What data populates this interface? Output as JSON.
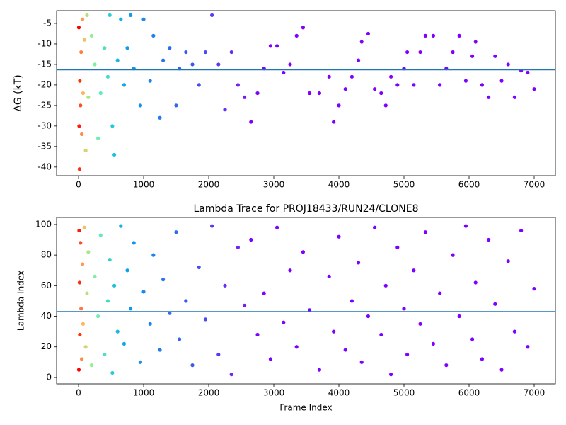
{
  "chart_data": [
    {
      "type": "scatter",
      "ylabel": "ΔG (kT)",
      "xlim": [
        -337,
        7326
      ],
      "ylim": [
        -42.1,
        -1.9
      ],
      "xticks": [
        0,
        1000,
        2000,
        3000,
        4000,
        5000,
        6000,
        7000
      ],
      "yticks": [
        -40,
        -35,
        -30,
        -25,
        -20,
        -15,
        -10,
        -5
      ],
      "hline": -16.3,
      "hline_color": "#1f77b4",
      "x": [
        5,
        10,
        15,
        20,
        30,
        40,
        50,
        60,
        70,
        90,
        110,
        130,
        150,
        200,
        250,
        300,
        340,
        400,
        450,
        480,
        520,
        550,
        600,
        650,
        700,
        750,
        800,
        850,
        950,
        1000,
        1100,
        1150,
        1250,
        1300,
        1400,
        1500,
        1550,
        1650,
        1750,
        1850,
        1950,
        2050,
        2150,
        2250,
        2350,
        2450,
        2550,
        2650,
        2750,
        2850,
        2950,
        3050,
        3150,
        3250,
        3350,
        3450,
        3550,
        3700,
        3850,
        3920,
        4000,
        4100,
        4200,
        4300,
        4350,
        4450,
        4550,
        4650,
        4720,
        4800,
        4900,
        5000,
        5050,
        5150,
        5250,
        5330,
        5450,
        5550,
        5650,
        5750,
        5850,
        5950,
        6050,
        6100,
        6200,
        6300,
        6400,
        6500,
        6600,
        6700,
        6800,
        6900,
        7000
      ],
      "values": [
        -6,
        -30,
        -40.5,
        -19,
        -25,
        -12,
        -32,
        -4,
        -22,
        -9,
        -36,
        -3,
        -23,
        -8,
        -15,
        -33,
        -22,
        -11,
        -18,
        -3,
        -30,
        -37,
        -14,
        -4,
        -20,
        -11,
        -3,
        -16,
        -25,
        -4,
        -19,
        -8,
        -28,
        -14,
        -11,
        -25,
        -16,
        -12,
        -15,
        -20,
        -12,
        -3,
        -15,
        -26,
        -12,
        -20,
        -23,
        -29,
        -22,
        -16,
        -10.5,
        -10.5,
        -17,
        -15,
        -8,
        -6,
        -22,
        -22,
        -18,
        -29,
        -25,
        -21,
        -18,
        -14,
        -9.5,
        -7.5,
        -21,
        -22,
        -25,
        -18,
        -20,
        -16,
        -12,
        -20,
        -12,
        -8,
        -8,
        -20,
        -16,
        -12,
        -8,
        -19,
        -13,
        -9.5,
        -20,
        -23,
        -13,
        -19,
        -15,
        -23,
        -16.5,
        -17,
        -21
      ],
      "colors": [
        "#ff0000",
        "#ff1a0d",
        "#ff2a14",
        "#ff3300",
        "#ff4d26",
        "#ff7a40",
        "#ff8a47",
        "#ff9a50",
        "#ffb45c",
        "#f0c066",
        "#d8d26f",
        "#b8e07a",
        "#a8e884",
        "#90f090",
        "#80f0a0",
        "#70f0b0",
        "#60ecb8",
        "#50e0c0",
        "#40dcc8",
        "#30d0d0",
        "#28c8d8",
        "#20c0dc",
        "#1ab8e0",
        "#14b0e4",
        "#10a8e8",
        "#10a0ea",
        "#109aec",
        "#1294ec",
        "#1690ec",
        "#1a8aee",
        "#1c84ee",
        "#2080ee",
        "#247aee",
        "#2874ee",
        "#2c6ef0",
        "#3068f0",
        "#3462f0",
        "#385cf0",
        "#3c56f0",
        "#4450f2",
        "#4c48f2",
        "#5440f2",
        "#5c38f4",
        "#6430f4",
        "#6c28f6",
        "#7420f6",
        "#7c18f8",
        "#8000ff",
        "#8000ff",
        "#8000ff",
        "#8000ff",
        "#8000ff",
        "#8000ff",
        "#8000ff",
        "#8000ff",
        "#8000ff",
        "#8000ff",
        "#8000ff",
        "#8000ff",
        "#8000ff",
        "#8000ff",
        "#8000ff",
        "#8000ff",
        "#8000ff",
        "#8000ff",
        "#8000ff",
        "#8000ff",
        "#8000ff",
        "#8000ff",
        "#8000ff",
        "#8000ff",
        "#8000ff",
        "#8000ff",
        "#8000ff",
        "#8000ff",
        "#8000ff",
        "#8000ff",
        "#8000ff",
        "#8000ff",
        "#8000ff",
        "#8000ff",
        "#8000ff",
        "#8000ff",
        "#8000ff",
        "#8000ff",
        "#8000ff",
        "#8000ff",
        "#8000ff",
        "#8000ff",
        "#8000ff",
        "#8000ff",
        "#8000ff",
        "#8000ff"
      ]
    },
    {
      "type": "scatter",
      "title": "Lambda Trace for PROJ18433/RUN24/CLONE8",
      "xlabel": "Frame Index",
      "ylabel": "Lambda Index",
      "xlim": [
        -337,
        7326
      ],
      "ylim": [
        -4.2,
        104.6
      ],
      "xticks": [
        0,
        1000,
        2000,
        3000,
        4000,
        5000,
        6000,
        7000
      ],
      "yticks": [
        0,
        20,
        40,
        60,
        80,
        100
      ],
      "hline": 43,
      "hline_color": "#1f77b4",
      "x": [
        5,
        10,
        15,
        20,
        30,
        40,
        50,
        60,
        70,
        90,
        110,
        130,
        150,
        200,
        250,
        300,
        340,
        400,
        450,
        480,
        520,
        550,
        600,
        650,
        700,
        750,
        800,
        850,
        950,
        1000,
        1100,
        1150,
        1250,
        1300,
        1400,
        1500,
        1550,
        1650,
        1750,
        1850,
        1950,
        2050,
        2150,
        2250,
        2350,
        2450,
        2550,
        2650,
        2750,
        2850,
        2950,
        3050,
        3150,
        3250,
        3350,
        3450,
        3550,
        3700,
        3850,
        3920,
        4000,
        4100,
        4200,
        4300,
        4350,
        4450,
        4550,
        4650,
        4720,
        4800,
        4900,
        5000,
        5050,
        5150,
        5250,
        5330,
        5450,
        5550,
        5650,
        5750,
        5850,
        5950,
        6050,
        6100,
        6200,
        6300,
        6400,
        6500,
        6600,
        6700,
        6800,
        6900,
        7000
      ],
      "values": [
        5,
        96,
        62,
        28,
        88,
        45,
        12,
        74,
        35,
        98,
        20,
        55,
        82,
        8,
        66,
        40,
        93,
        15,
        50,
        77,
        3,
        60,
        30,
        99,
        22,
        70,
        45,
        88,
        10,
        56,
        35,
        80,
        18,
        64,
        42,
        95,
        25,
        50,
        8,
        72,
        38,
        99,
        15,
        60,
        2,
        85,
        47,
        90,
        28,
        55,
        12,
        98,
        36,
        70,
        20,
        82,
        44,
        5,
        66,
        30,
        92,
        18,
        50,
        75,
        10,
        40,
        98,
        28,
        60,
        2,
        85,
        45,
        15,
        70,
        35,
        95,
        22,
        55,
        8,
        80,
        40,
        99,
        25,
        62,
        12,
        90,
        48,
        5,
        76,
        30,
        96,
        20,
        58
      ],
      "colors": [
        "#ff0000",
        "#ff1a0d",
        "#ff2a14",
        "#ff3300",
        "#ff4d26",
        "#ff7a40",
        "#ff8a47",
        "#ff9a50",
        "#ffb45c",
        "#f0c066",
        "#d8d26f",
        "#b8e07a",
        "#a8e884",
        "#90f090",
        "#80f0a0",
        "#70f0b0",
        "#60ecb8",
        "#50e0c0",
        "#40dcc8",
        "#30d0d0",
        "#28c8d8",
        "#20c0dc",
        "#1ab8e0",
        "#14b0e4",
        "#10a8e8",
        "#10a0ea",
        "#109aec",
        "#1294ec",
        "#1690ec",
        "#1a8aee",
        "#1c84ee",
        "#2080ee",
        "#247aee",
        "#2874ee",
        "#2c6ef0",
        "#3068f0",
        "#3462f0",
        "#385cf0",
        "#3c56f0",
        "#4450f2",
        "#4c48f2",
        "#5440f2",
        "#5c38f4",
        "#6430f4",
        "#6c28f6",
        "#7420f6",
        "#7c18f8",
        "#8000ff",
        "#8000ff",
        "#8000ff",
        "#8000ff",
        "#8000ff",
        "#8000ff",
        "#8000ff",
        "#8000ff",
        "#8000ff",
        "#8000ff",
        "#8000ff",
        "#8000ff",
        "#8000ff",
        "#8000ff",
        "#8000ff",
        "#8000ff",
        "#8000ff",
        "#8000ff",
        "#8000ff",
        "#8000ff",
        "#8000ff",
        "#8000ff",
        "#8000ff",
        "#8000ff",
        "#8000ff",
        "#8000ff",
        "#8000ff",
        "#8000ff",
        "#8000ff",
        "#8000ff",
        "#8000ff",
        "#8000ff",
        "#8000ff",
        "#8000ff",
        "#8000ff",
        "#8000ff",
        "#8000ff",
        "#8000ff",
        "#8000ff",
        "#8000ff",
        "#8000ff",
        "#8000ff",
        "#8000ff",
        "#8000ff",
        "#8000ff",
        "#8000ff"
      ]
    }
  ]
}
